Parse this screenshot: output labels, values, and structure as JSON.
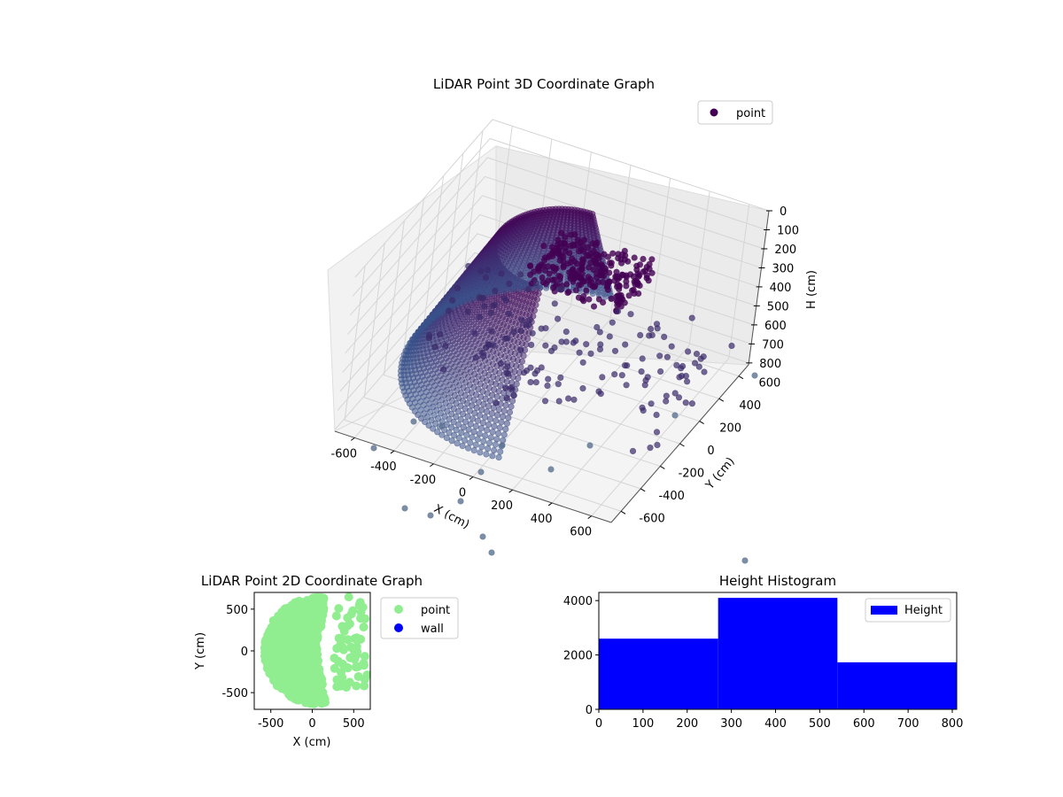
{
  "chart_data": [
    {
      "type": "scatter",
      "projection": "3d",
      "title": "LiDAR Point 3D Coordinate Graph",
      "xlabel": "X (cm)",
      "ylabel": "Y (cm)",
      "zlabel": "H (cm)",
      "xlim": [
        -700,
        700
      ],
      "ylim": [
        -700,
        700
      ],
      "zlim": [
        810,
        0
      ],
      "x_ticks": [
        "-600",
        "-400",
        "-200",
        "0",
        "200",
        "400",
        "600"
      ],
      "y_ticks": [
        "-600",
        "-400",
        "-200",
        "0",
        "200",
        "400",
        "600"
      ],
      "z_ticks": [
        "0",
        "100",
        "200",
        "300",
        "400",
        "500",
        "600",
        "700",
        "800"
      ],
      "series": [
        {
          "name": "point",
          "color": "#440154"
        }
      ],
      "legend": "top-right",
      "grid": true
    },
    {
      "type": "scatter",
      "title": "LiDAR Point 2D Coordinate Graph",
      "xlabel": "X (cm)",
      "ylabel": "Y (cm)",
      "xlim": [
        -700,
        700
      ],
      "ylim": [
        -700,
        700
      ],
      "x_ticks": [
        "-500",
        "0",
        "500"
      ],
      "y_ticks": [
        "-500",
        "0",
        "500"
      ],
      "series": [
        {
          "name": "point",
          "color": "#90ee90"
        },
        {
          "name": "wall",
          "color": "#0000ff"
        }
      ],
      "legend": "outside-right"
    },
    {
      "type": "bar",
      "title": "Height Histogram",
      "xlim": [
        0,
        810
      ],
      "ylim": [
        0,
        4300
      ],
      "x_ticks": [
        "0",
        "100",
        "200",
        "300",
        "400",
        "500",
        "600",
        "700",
        "800"
      ],
      "y_ticks": [
        "0",
        "2000",
        "4000"
      ],
      "bins": [
        [
          0,
          270
        ],
        [
          270,
          540
        ],
        [
          540,
          810
        ]
      ],
      "values": [
        2600,
        4100,
        1730
      ],
      "series": [
        {
          "name": "Height",
          "color": "#0000ff"
        }
      ],
      "legend": "top-right"
    }
  ]
}
